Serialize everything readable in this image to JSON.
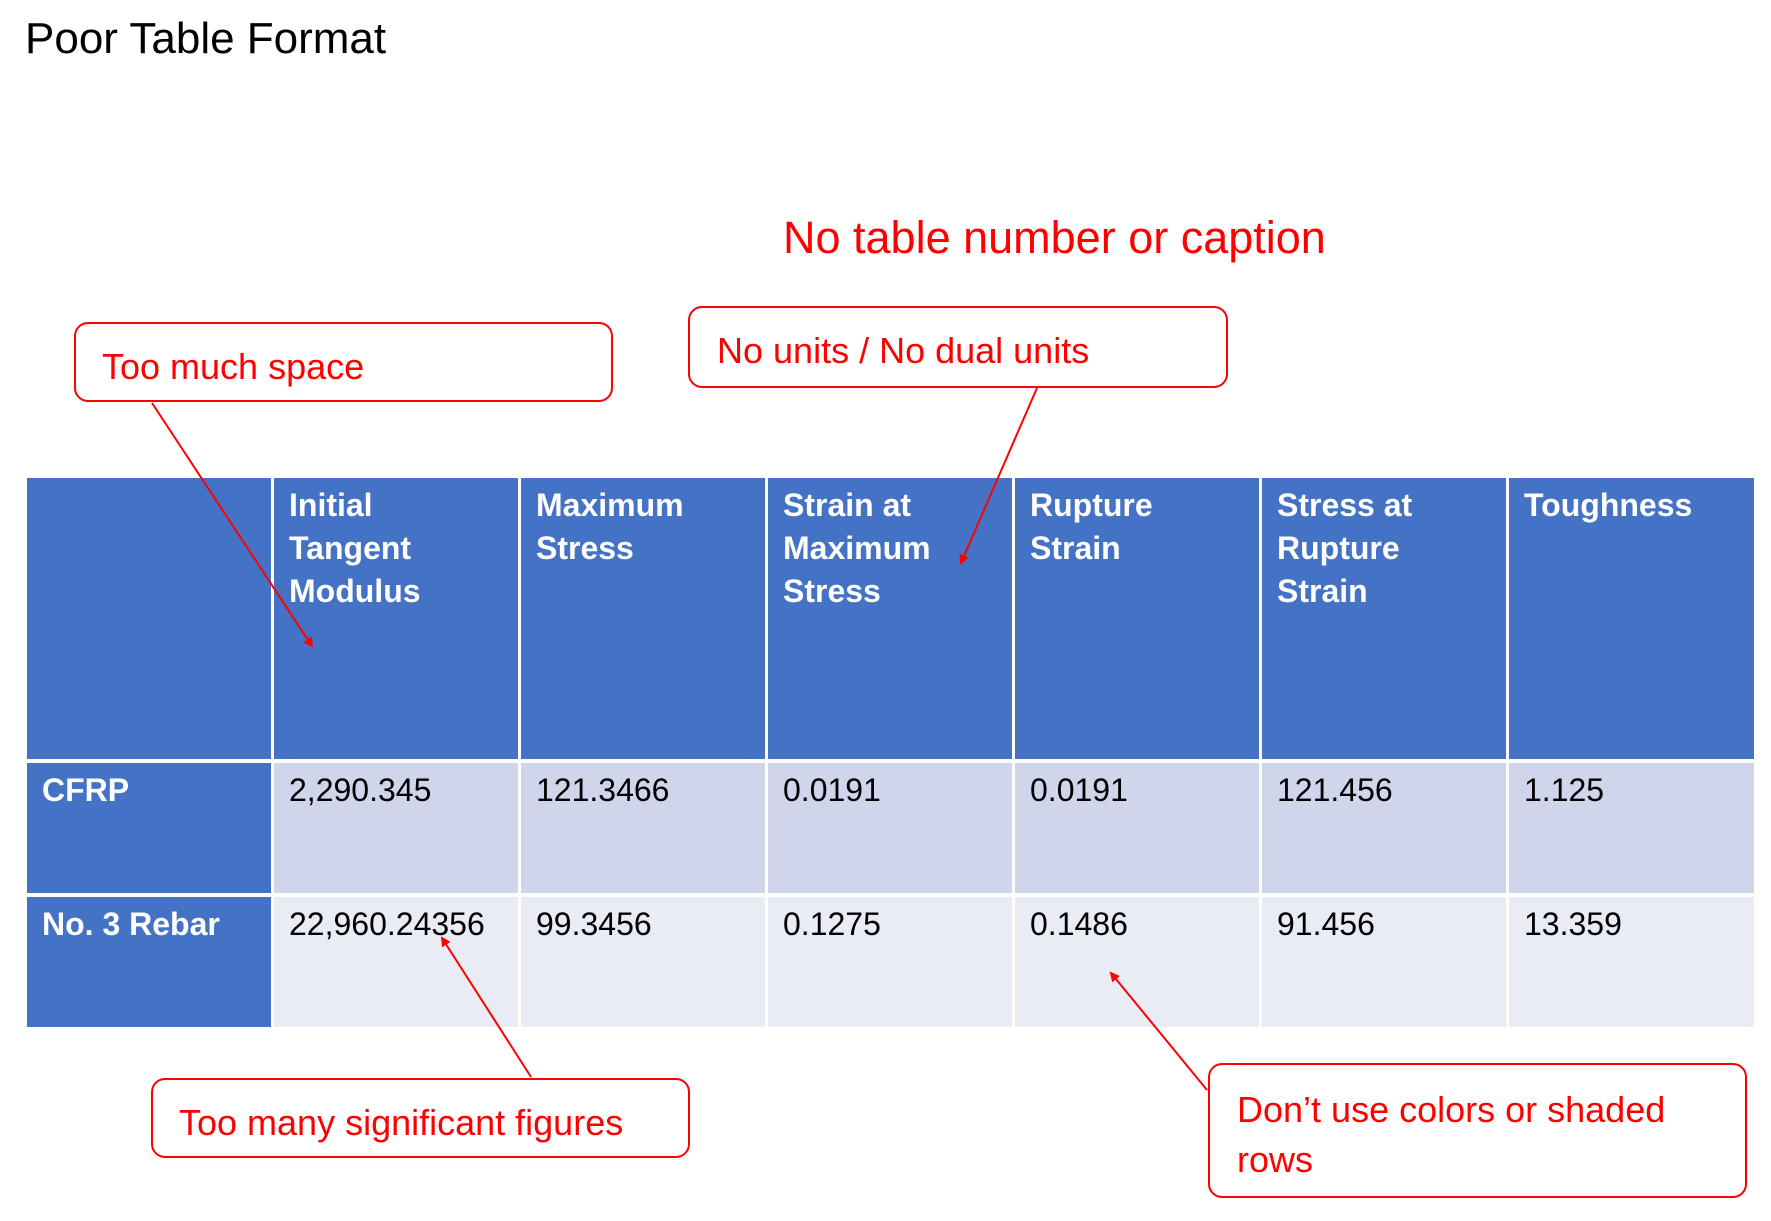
{
  "title": "Poor Table Format",
  "annotations": {
    "caption_note": "No table number or caption",
    "too_much_space": "Too much space",
    "units": "No units / No dual units",
    "sig_figs": "Too many significant figures",
    "colors": "Don’t use colors or shaded rows"
  },
  "table": {
    "headers": [
      "",
      "Initial Tangent Modulus",
      "Maximum Stress",
      "Strain at Maximum Stress",
      "Rupture Strain",
      "Stress at Rupture Strain",
      "Toughness"
    ],
    "rows": [
      [
        "CFRP",
        "2,290.345",
        "121.3466",
        "0.0191",
        "0.0191",
        "121.456",
        "1.125"
      ],
      [
        "No. 3 Rebar",
        "22,960.24356",
        "99.3456",
        "0.1275",
        "0.1486",
        "91.456",
        "13.359"
      ]
    ]
  },
  "colors": {
    "header_fill": "#4472c4",
    "row1_fill": "#cfd5ea",
    "row2_fill": "#e9ebf5",
    "annotation": "#ff0000"
  }
}
